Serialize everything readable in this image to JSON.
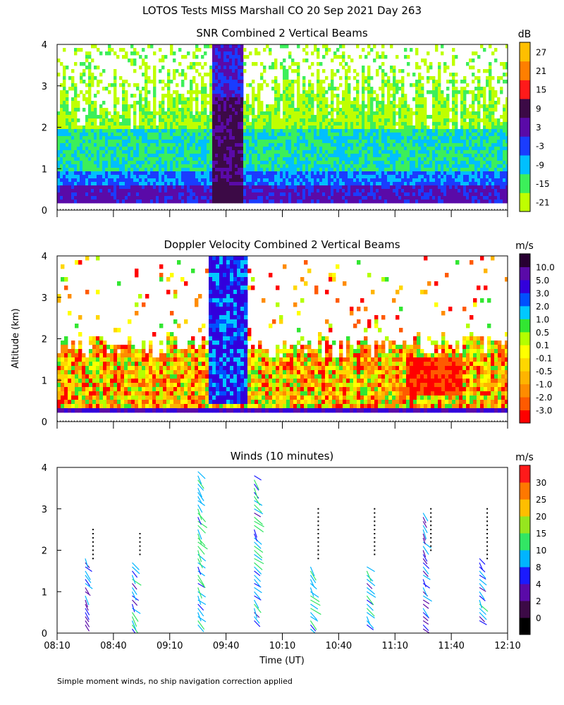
{
  "figure": {
    "title": "LOTOS Tests MISS Marshall CO  20 Sep 2021 Day 263",
    "y_axis_label": "Altitude (km)",
    "x_axis_label": "Time (UT)",
    "footnote": "Simple moment winds, no ship navigation correction applied"
  },
  "chart_data": [
    {
      "type": "heatmap",
      "title": "SNR Combined 2 Vertical Beams",
      "xlabel": "",
      "ylabel": "Altitude (km)",
      "xlim": [
        490,
        730
      ],
      "ylim": [
        0,
        4
      ],
      "yticks": [
        "0",
        "1",
        "2",
        "3",
        "4"
      ],
      "grid": false,
      "colorbar": {
        "unit": "dB",
        "tick_labels": [
          "-21",
          "-15",
          "-9",
          "-3",
          "3",
          "9",
          "15",
          "21",
          "27"
        ],
        "colors": [
          "#bfff00",
          "#3cef5a",
          "#00bfff",
          "#1a3cff",
          "#5a0aa8",
          "#3c0a46",
          "#ff1a1a",
          "#ff7f00",
          "#ffbf00"
        ]
      },
      "features": [
        {
          "name": "low-level layer",
          "time_range": [
            490,
            730
          ],
          "altitude_range_km": [
            0.25,
            0.7
          ],
          "snr_db": 6
        },
        {
          "name": "convective column",
          "time_range": [
            575,
            585
          ],
          "altitude_range_km": [
            0.25,
            4.0
          ],
          "snr_db": 9
        },
        {
          "name": "background echo",
          "time_range": [
            490,
            730
          ],
          "altitude_range_km": [
            0.7,
            2.0
          ],
          "snr_db": -9
        },
        {
          "name": "upper fringe",
          "time_range": [
            490,
            730
          ],
          "altitude_range_km": [
            2.0,
            4.0
          ],
          "snr_db": -20
        }
      ]
    },
    {
      "type": "heatmap",
      "title": "Doppler Velocity Combined 2 Vertical Beams",
      "xlabel": "",
      "ylabel": "Altitude (km)",
      "xlim": [
        490,
        730
      ],
      "ylim": [
        0,
        4
      ],
      "yticks": [
        "0",
        "1",
        "2",
        "3",
        "4"
      ],
      "grid": false,
      "colorbar": {
        "unit": "m/s",
        "tick_labels": [
          "-3.0",
          "-2.0",
          "-1.0",
          "-0.5",
          "-0.1",
          "0.1",
          "0.5",
          "1.0",
          "2.0",
          "3.0",
          "5.0",
          "10.0"
        ],
        "colors": [
          "#ff0000",
          "#ff5a00",
          "#ff8c00",
          "#ffb400",
          "#ffd700",
          "#ffff00",
          "#b4ff00",
          "#32e632",
          "#00c8ff",
          "#0050ff",
          "#3200dc",
          "#5a0aa8",
          "#280032"
        ]
      },
      "features": [
        {
          "name": "convective column",
          "time_range": [
            568,
            590
          ],
          "altitude_range_km": [
            0.5,
            4.0
          ],
          "velocity_ms": 3.0
        },
        {
          "name": "mixed layer",
          "time_range": [
            490,
            730
          ],
          "altitude_range_km": [
            0.25,
            2.0
          ],
          "velocity_ms": 0.1
        },
        {
          "name": "downward motion",
          "time_range": [
            680,
            700
          ],
          "altitude_range_km": [
            0.7,
            1.5
          ],
          "velocity_ms": -3.0
        }
      ]
    },
    {
      "type": "scatter",
      "title": "Winds (10 minutes)",
      "xlabel": "Time (UT)",
      "ylabel": "Altitude (km)",
      "xlim": [
        490,
        730
      ],
      "ylim": [
        0,
        4
      ],
      "xtick_labels": [
        "08:10",
        "08:40",
        "09:10",
        "09:40",
        "10:10",
        "10:40",
        "11:10",
        "11:40",
        "12:10"
      ],
      "yticks": [
        "0",
        "1",
        "2",
        "3",
        "4"
      ],
      "grid": false,
      "colorbar": {
        "unit": "m/s",
        "tick_labels": [
          "0",
          "2",
          "4",
          "8",
          "10",
          "15",
          "20",
          "25",
          "30"
        ],
        "colors": [
          "#000000",
          "#3c0a46",
          "#5a0aa8",
          "#1a1aff",
          "#00b4ff",
          "#32e664",
          "#96e61e",
          "#ffbe00",
          "#ff7800",
          "#ff1a1a"
        ]
      },
      "profiles": [
        {
          "time": 505,
          "alt_min_km": 0.2,
          "alt_max_km": 1.8,
          "speed_ms": 10,
          "missing_alt_min_km": 1.8,
          "missing_alt_max_km": 2.5
        },
        {
          "time": 530,
          "alt_min_km": 0.1,
          "alt_max_km": 1.7,
          "speed_ms": 12,
          "missing_alt_min_km": 1.9,
          "missing_alt_max_km": 2.4
        },
        {
          "time": 565,
          "alt_min_km": 0.2,
          "alt_max_km": 3.9,
          "speed_ms": 14,
          "missing_alt_min_km": 0,
          "missing_alt_max_km": 0
        },
        {
          "time": 595,
          "alt_min_km": 0.3,
          "alt_max_km": 3.8,
          "speed_ms": 12,
          "missing_alt_min_km": 0,
          "missing_alt_max_km": 0
        },
        {
          "time": 625,
          "alt_min_km": 0.1,
          "alt_max_km": 1.6,
          "speed_ms": 14,
          "missing_alt_min_km": 1.8,
          "missing_alt_max_km": 3.0
        },
        {
          "time": 655,
          "alt_min_km": 0.2,
          "alt_max_km": 1.6,
          "speed_ms": 12,
          "missing_alt_min_km": 1.9,
          "missing_alt_max_km": 3.0
        },
        {
          "time": 685,
          "alt_min_km": 0.1,
          "alt_max_km": 2.9,
          "speed_ms": 10,
          "missing_alt_min_km": 2.0,
          "missing_alt_max_km": 3.0
        },
        {
          "time": 715,
          "alt_min_km": 0.3,
          "alt_max_km": 1.8,
          "speed_ms": 12,
          "missing_alt_min_km": 1.8,
          "missing_alt_max_km": 3.0
        }
      ]
    }
  ]
}
